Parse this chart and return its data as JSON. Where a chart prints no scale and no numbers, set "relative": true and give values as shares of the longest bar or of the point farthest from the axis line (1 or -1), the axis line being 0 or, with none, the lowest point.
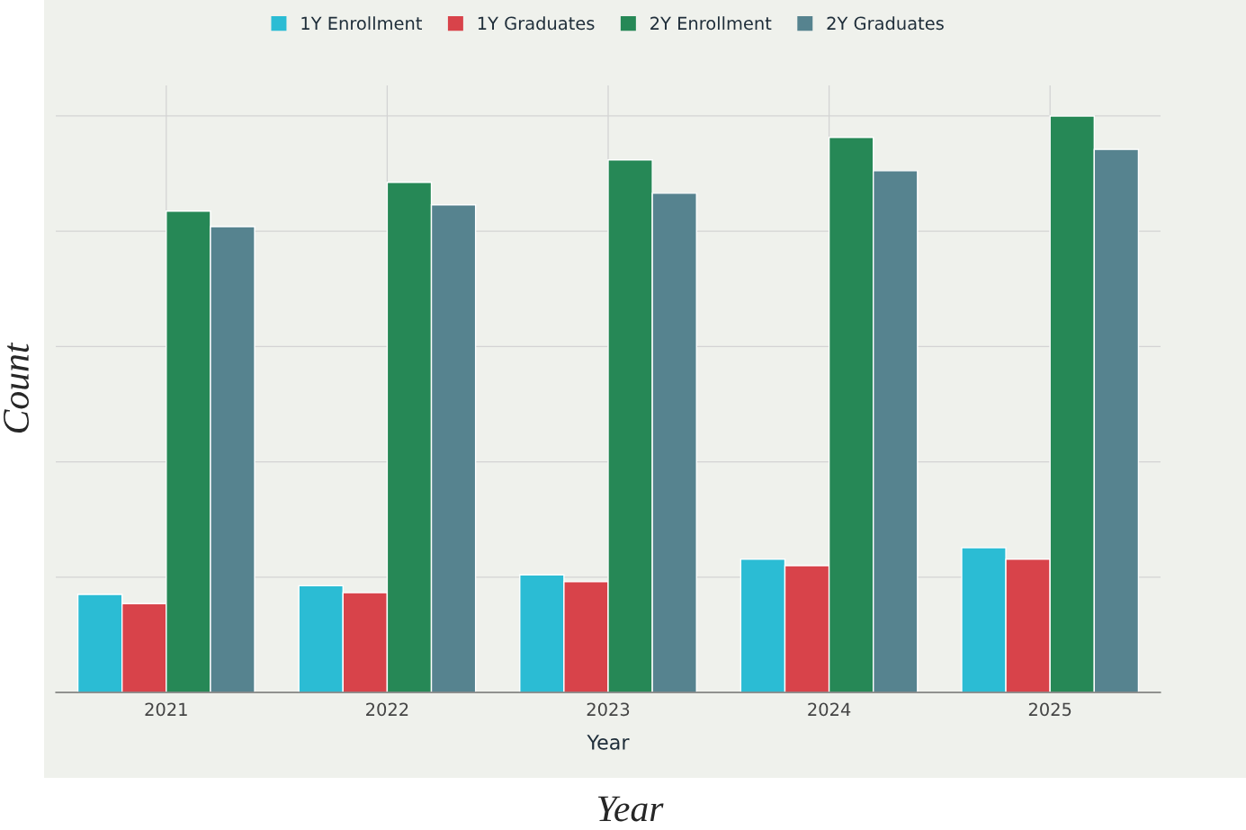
{
  "chart_data": {
    "type": "bar",
    "relative": true,
    "xlabel": "Year",
    "ylabel": "Count",
    "annotations": [
      "Year"
    ],
    "categories": [
      "2021",
      "2022",
      "2023",
      "2024",
      "2025"
    ],
    "series": [
      {
        "name": "1Y Enrollment",
        "color": "#2bbcd4",
        "values": [
          0.17,
          0.185,
          0.204,
          0.231,
          0.251
        ]
      },
      {
        "name": "1Y Graduates",
        "color": "#d8434a",
        "values": [
          0.154,
          0.173,
          0.192,
          0.22,
          0.231
        ]
      },
      {
        "name": "2Y Enrollment",
        "color": "#268856",
        "values": [
          0.835,
          0.885,
          0.924,
          0.963,
          1
        ]
      },
      {
        "name": "2Y Graduates",
        "color": "#56838f",
        "values": [
          0.808,
          0.846,
          0.866,
          0.905,
          0.942
        ]
      }
    ],
    "grid": true,
    "legend": "top"
  }
}
